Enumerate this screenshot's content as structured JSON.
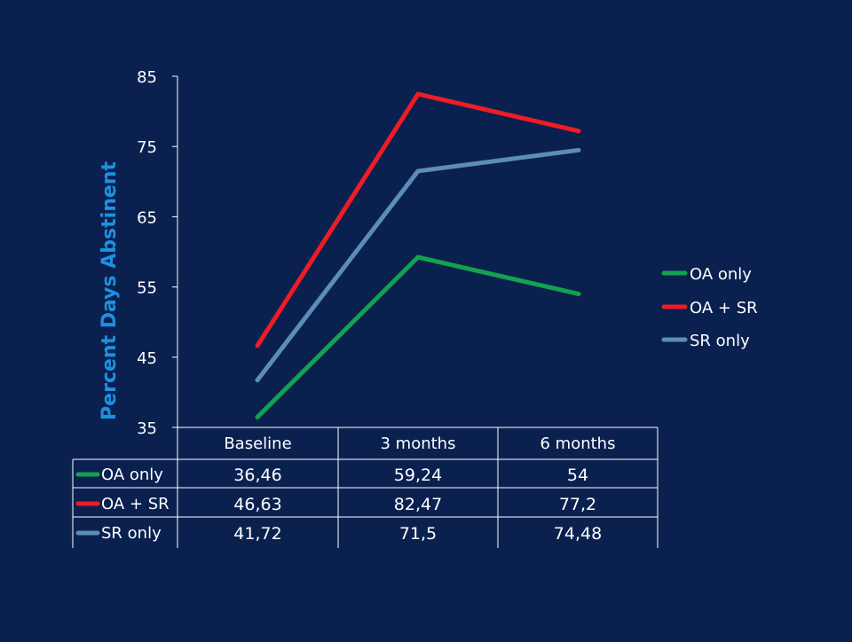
{
  "chart_data": {
    "type": "line",
    "ylabel": "Percent  Days  Abstinent",
    "ylim": [
      35,
      85
    ],
    "yticks": [
      "35",
      "45",
      "55",
      "65",
      "75",
      "85"
    ],
    "categories": [
      "Baseline",
      "3 months",
      "6 months"
    ],
    "series": [
      {
        "name": "OA only",
        "values": [
          36.46,
          59.24,
          54
        ],
        "labels": [
          "36,46",
          "59,24",
          "54"
        ],
        "color": "#13a24f"
      },
      {
        "name": "OA + SR",
        "values": [
          46.63,
          82.47,
          77.2
        ],
        "labels": [
          "46,63",
          "82,47",
          "77,2"
        ],
        "color": "#ee1c24"
      },
      {
        "name": "SR only",
        "values": [
          41.72,
          71.5,
          74.48
        ],
        "labels": [
          "41,72",
          "71,5",
          "74,48"
        ],
        "color": "#5b8db8"
      }
    ],
    "legend_position": "right",
    "data_table": true,
    "grid": false
  },
  "colors": {
    "background": "#0a2150",
    "text": "#ffffff",
    "axis_title": "#1e90e0",
    "axis_line": "#ffffff"
  }
}
